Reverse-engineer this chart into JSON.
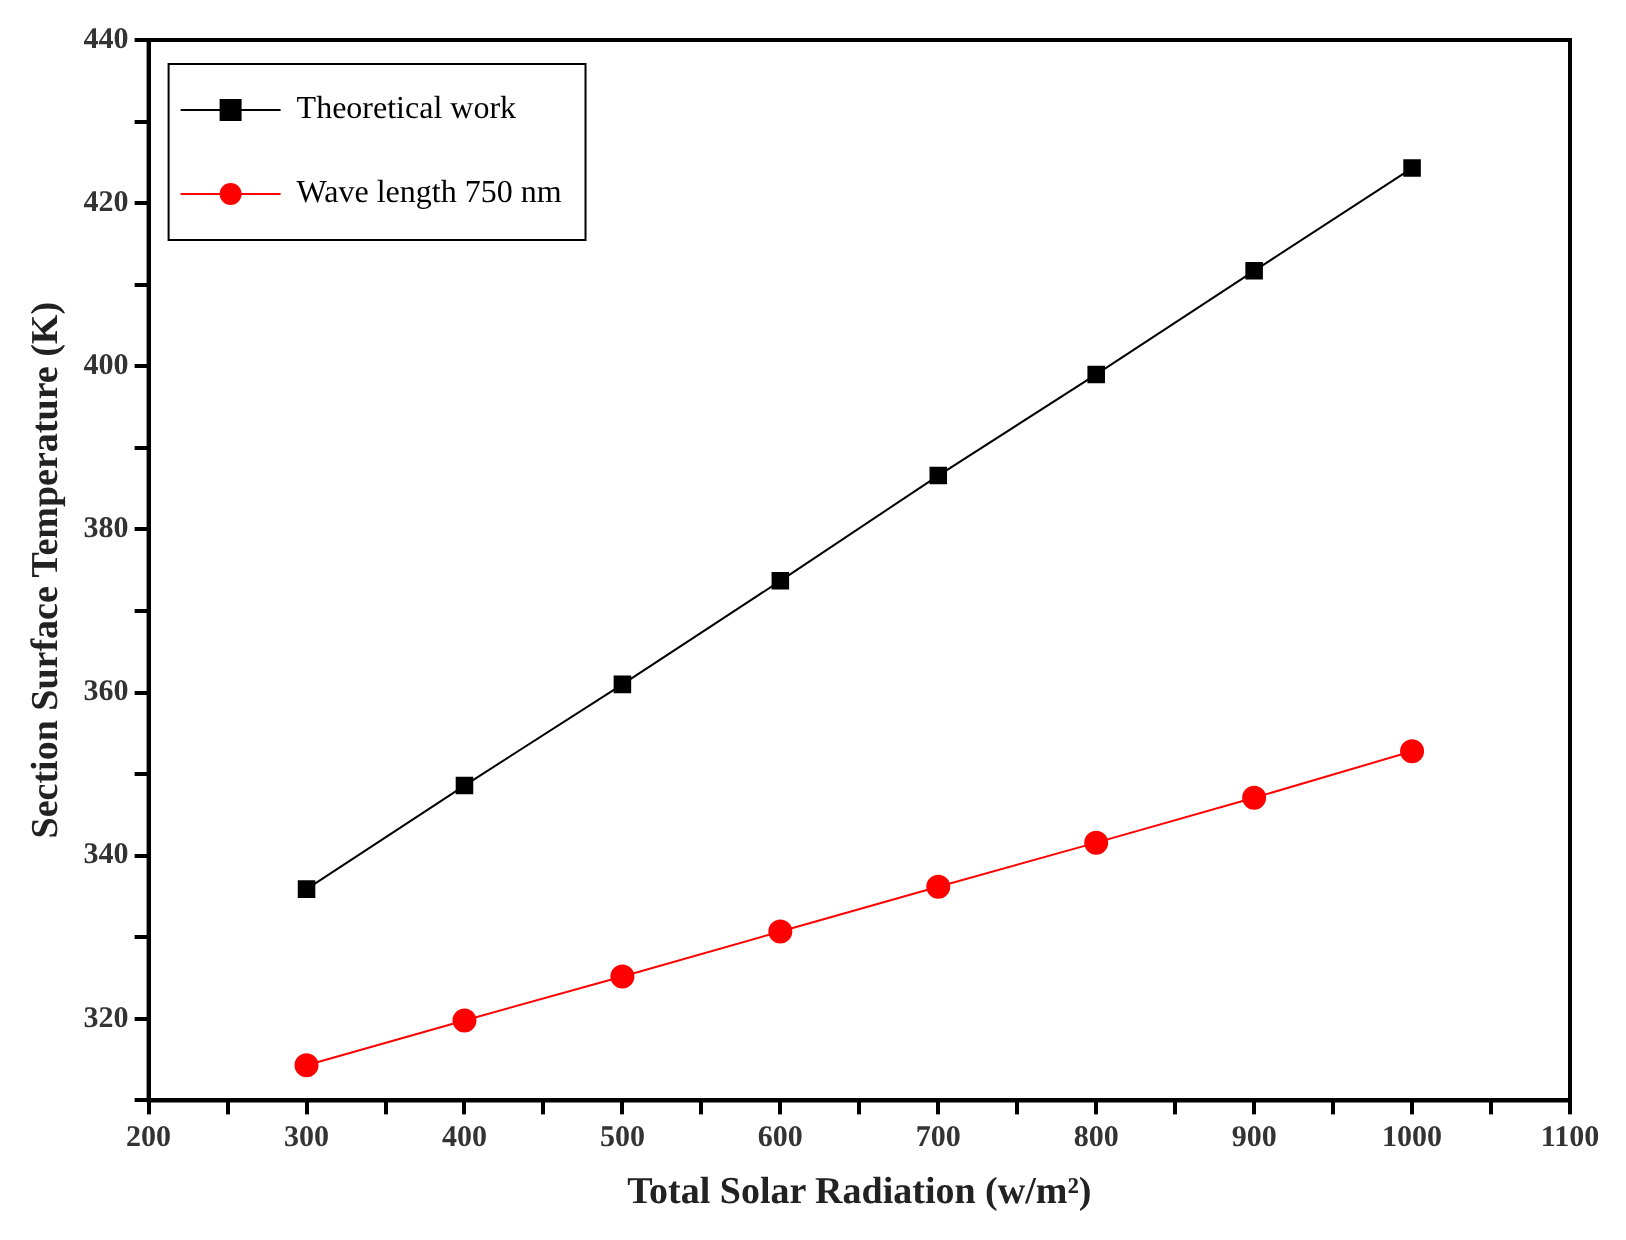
{
  "chart_data": {
    "type": "line",
    "xlabel": "Total Solar Radiation (w/m²)",
    "ylabel": "Section Surface Temperature (K)",
    "x": [
      300,
      400,
      500,
      600,
      700,
      800,
      900,
      1000
    ],
    "series": [
      {
        "name": "Theoretical work",
        "color": "#000000",
        "marker": "square",
        "values": [
          335.9,
          348.6,
          361.0,
          373.7,
          386.6,
          399.0,
          411.7,
          424.3
        ]
      },
      {
        "name": "Wave length 750 nm",
        "color": "#ff0000",
        "marker": "circle",
        "values": [
          314.3,
          319.8,
          325.2,
          330.7,
          336.2,
          341.6,
          347.1,
          352.8
        ]
      }
    ],
    "xlim": [
      200,
      1100
    ],
    "xticks": [
      200,
      {
        "value": 250,
        "label": null
      },
      300,
      {
        "value": 350,
        "label": null
      },
      400,
      {
        "value": 450,
        "label": null
      },
      500,
      {
        "value": 550,
        "label": null
      },
      600,
      {
        "value": 650,
        "label": null
      },
      700,
      {
        "value": 750,
        "label": null
      },
      800,
      {
        "value": 850,
        "label": null
      },
      900,
      {
        "value": 950,
        "label": null
      },
      1000,
      {
        "value": 1050,
        "label": null
      },
      1100
    ],
    "ylim": [
      310,
      440
    ],
    "yticks": [
      {
        "value": 310,
        "label": null
      },
      320,
      {
        "value": 330,
        "label": null
      },
      340,
      {
        "value": 350,
        "label": null
      },
      360,
      {
        "value": 370,
        "label": null
      },
      380,
      {
        "value": 390,
        "label": null
      },
      400,
      {
        "value": 410,
        "label": null
      },
      420,
      {
        "value": 430,
        "label": null
      },
      440
    ],
    "grid": false,
    "legend": "top left",
    "line_style": "solid"
  }
}
